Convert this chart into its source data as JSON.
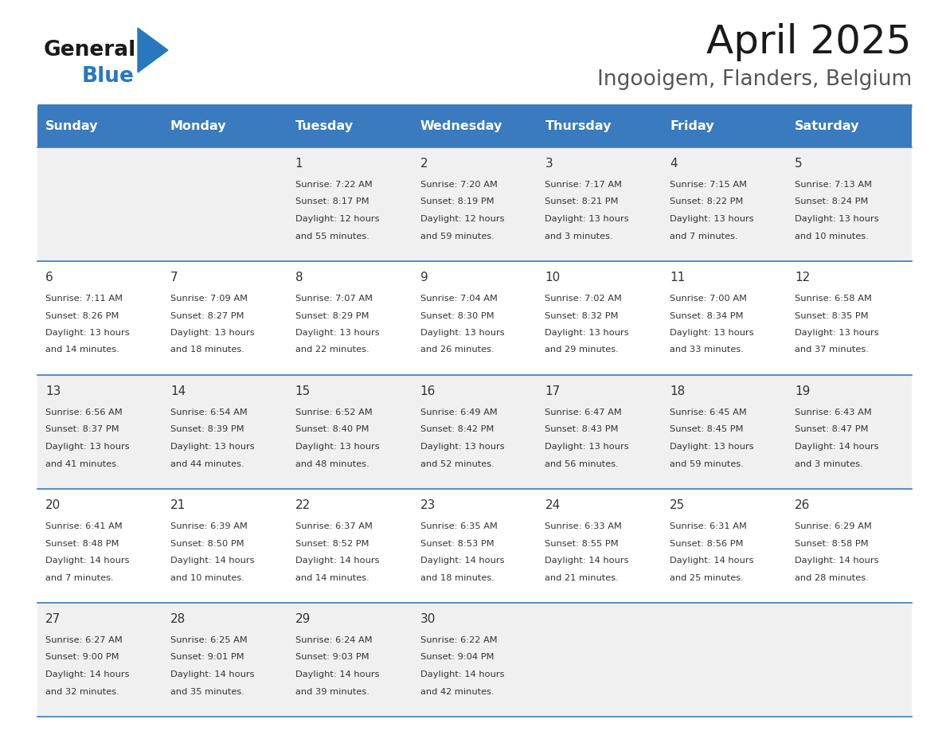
{
  "title": "April 2025",
  "subtitle": "Ingooigem, Flanders, Belgium",
  "header_color": "#3a7abf",
  "header_text_color": "#ffffff",
  "row_alt_color": "#f0f0f0",
  "row_white_color": "#ffffff",
  "border_color": "#3a7abf",
  "text_color": "#333333",
  "days_of_week": [
    "Sunday",
    "Monday",
    "Tuesday",
    "Wednesday",
    "Thursday",
    "Friday",
    "Saturday"
  ],
  "weeks": [
    [
      {
        "day": "",
        "sunrise": "",
        "sunset": "",
        "daylight": ""
      },
      {
        "day": "",
        "sunrise": "",
        "sunset": "",
        "daylight": ""
      },
      {
        "day": "1",
        "sunrise": "7:22 AM",
        "sunset": "8:17 PM",
        "daylight": "12 hours and 55 minutes."
      },
      {
        "day": "2",
        "sunrise": "7:20 AM",
        "sunset": "8:19 PM",
        "daylight": "12 hours and 59 minutes."
      },
      {
        "day": "3",
        "sunrise": "7:17 AM",
        "sunset": "8:21 PM",
        "daylight": "13 hours and 3 minutes."
      },
      {
        "day": "4",
        "sunrise": "7:15 AM",
        "sunset": "8:22 PM",
        "daylight": "13 hours and 7 minutes."
      },
      {
        "day": "5",
        "sunrise": "7:13 AM",
        "sunset": "8:24 PM",
        "daylight": "13 hours and 10 minutes."
      }
    ],
    [
      {
        "day": "6",
        "sunrise": "7:11 AM",
        "sunset": "8:26 PM",
        "daylight": "13 hours and 14 minutes."
      },
      {
        "day": "7",
        "sunrise": "7:09 AM",
        "sunset": "8:27 PM",
        "daylight": "13 hours and 18 minutes."
      },
      {
        "day": "8",
        "sunrise": "7:07 AM",
        "sunset": "8:29 PM",
        "daylight": "13 hours and 22 minutes."
      },
      {
        "day": "9",
        "sunrise": "7:04 AM",
        "sunset": "8:30 PM",
        "daylight": "13 hours and 26 minutes."
      },
      {
        "day": "10",
        "sunrise": "7:02 AM",
        "sunset": "8:32 PM",
        "daylight": "13 hours and 29 minutes."
      },
      {
        "day": "11",
        "sunrise": "7:00 AM",
        "sunset": "8:34 PM",
        "daylight": "13 hours and 33 minutes."
      },
      {
        "day": "12",
        "sunrise": "6:58 AM",
        "sunset": "8:35 PM",
        "daylight": "13 hours and 37 minutes."
      }
    ],
    [
      {
        "day": "13",
        "sunrise": "6:56 AM",
        "sunset": "8:37 PM",
        "daylight": "13 hours and 41 minutes."
      },
      {
        "day": "14",
        "sunrise": "6:54 AM",
        "sunset": "8:39 PM",
        "daylight": "13 hours and 44 minutes."
      },
      {
        "day": "15",
        "sunrise": "6:52 AM",
        "sunset": "8:40 PM",
        "daylight": "13 hours and 48 minutes."
      },
      {
        "day": "16",
        "sunrise": "6:49 AM",
        "sunset": "8:42 PM",
        "daylight": "13 hours and 52 minutes."
      },
      {
        "day": "17",
        "sunrise": "6:47 AM",
        "sunset": "8:43 PM",
        "daylight": "13 hours and 56 minutes."
      },
      {
        "day": "18",
        "sunrise": "6:45 AM",
        "sunset": "8:45 PM",
        "daylight": "13 hours and 59 minutes."
      },
      {
        "day": "19",
        "sunrise": "6:43 AM",
        "sunset": "8:47 PM",
        "daylight": "14 hours and 3 minutes."
      }
    ],
    [
      {
        "day": "20",
        "sunrise": "6:41 AM",
        "sunset": "8:48 PM",
        "daylight": "14 hours and 7 minutes."
      },
      {
        "day": "21",
        "sunrise": "6:39 AM",
        "sunset": "8:50 PM",
        "daylight": "14 hours and 10 minutes."
      },
      {
        "day": "22",
        "sunrise": "6:37 AM",
        "sunset": "8:52 PM",
        "daylight": "14 hours and 14 minutes."
      },
      {
        "day": "23",
        "sunrise": "6:35 AM",
        "sunset": "8:53 PM",
        "daylight": "14 hours and 18 minutes."
      },
      {
        "day": "24",
        "sunrise": "6:33 AM",
        "sunset": "8:55 PM",
        "daylight": "14 hours and 21 minutes."
      },
      {
        "day": "25",
        "sunrise": "6:31 AM",
        "sunset": "8:56 PM",
        "daylight": "14 hours and 25 minutes."
      },
      {
        "day": "26",
        "sunrise": "6:29 AM",
        "sunset": "8:58 PM",
        "daylight": "14 hours and 28 minutes."
      }
    ],
    [
      {
        "day": "27",
        "sunrise": "6:27 AM",
        "sunset": "9:00 PM",
        "daylight": "14 hours and 32 minutes."
      },
      {
        "day": "28",
        "sunrise": "6:25 AM",
        "sunset": "9:01 PM",
        "daylight": "14 hours and 35 minutes."
      },
      {
        "day": "29",
        "sunrise": "6:24 AM",
        "sunset": "9:03 PM",
        "daylight": "14 hours and 39 minutes."
      },
      {
        "day": "30",
        "sunrise": "6:22 AM",
        "sunset": "9:04 PM",
        "daylight": "14 hours and 42 minutes."
      },
      {
        "day": "",
        "sunrise": "",
        "sunset": "",
        "daylight": ""
      },
      {
        "day": "",
        "sunrise": "",
        "sunset": "",
        "daylight": ""
      },
      {
        "day": "",
        "sunrise": "",
        "sunset": "",
        "daylight": ""
      }
    ]
  ],
  "logo_triangle_color": "#2878be",
  "fig_width": 11.88,
  "fig_height": 9.18,
  "dpi": 100
}
